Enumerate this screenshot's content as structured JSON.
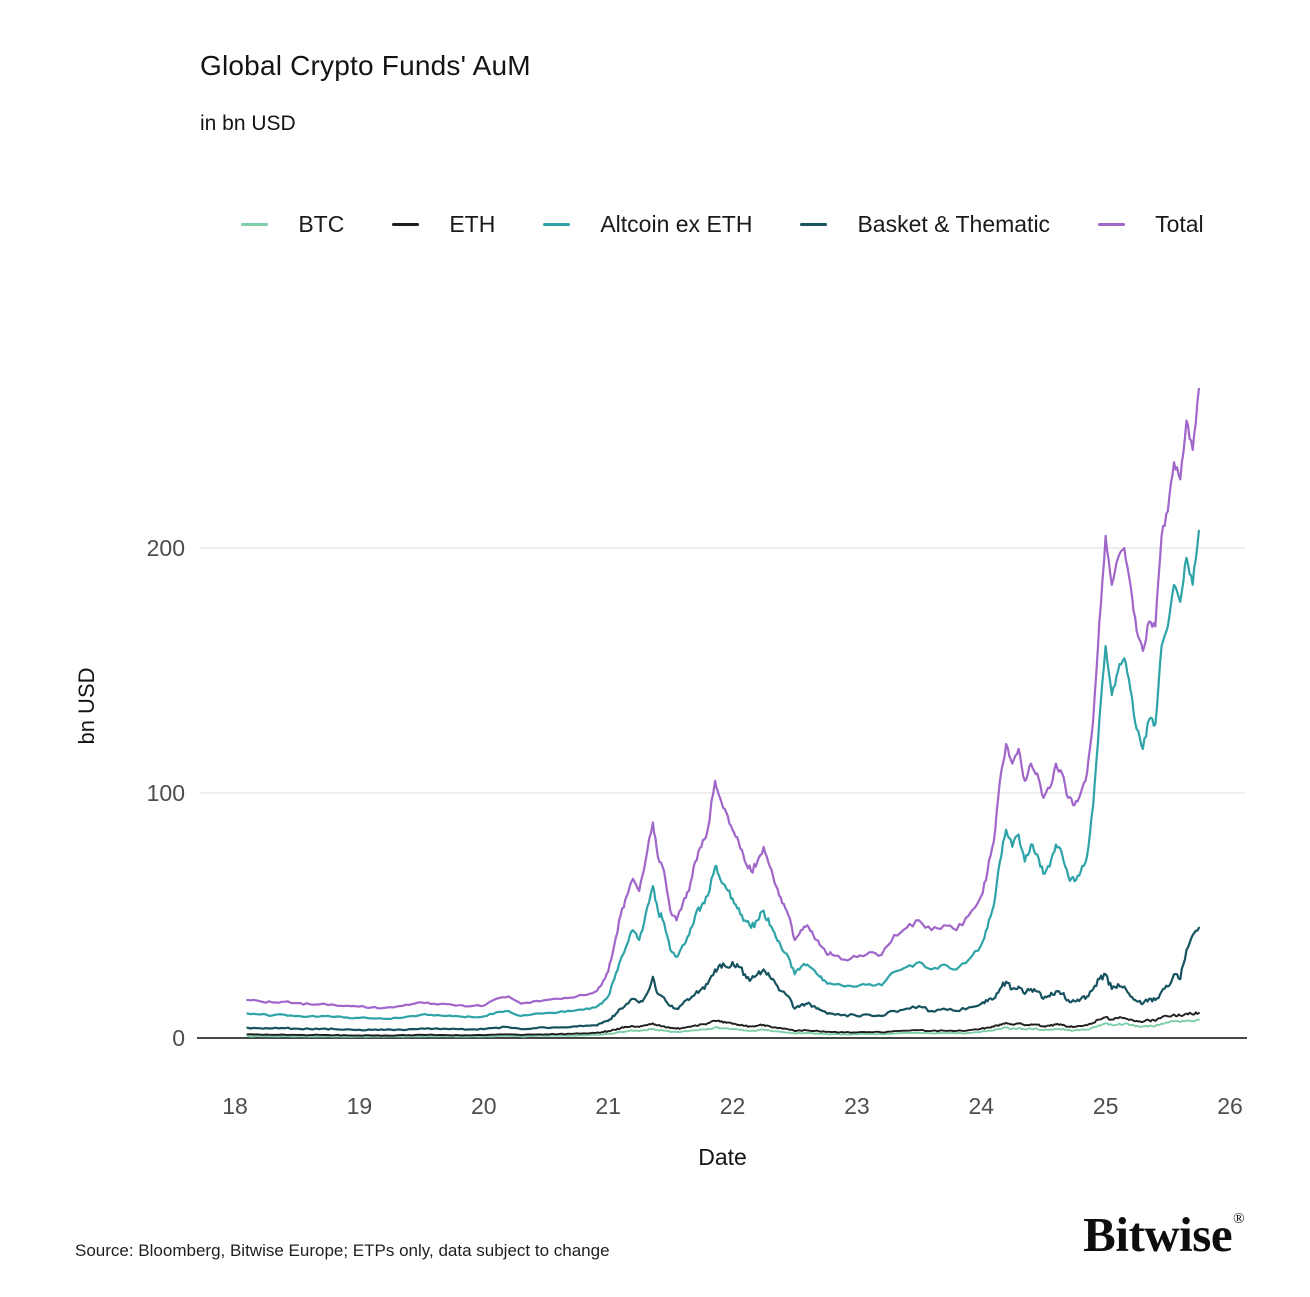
{
  "page": {
    "title": "Global Crypto Funds' AuM",
    "subtitle": "in bn USD",
    "footer_source": "Source: Bloomberg, Bitwise Europe; ETPs only, data subject to change",
    "brand": "Bitwise",
    "brand_mark": "®"
  },
  "chart_data": {
    "type": "line",
    "title": "Global Crypto Funds' AuM",
    "subtitle": "in bn USD",
    "xlabel": "Date",
    "ylabel": "bn USD",
    "xlim": [
      18,
      26
    ],
    "ylim": [
      0,
      280
    ],
    "x_ticks": [
      18,
      19,
      20,
      21,
      22,
      23,
      24,
      25,
      26
    ],
    "y_ticks": [
      0,
      100,
      200
    ],
    "grid": "horizontal gridlines at 100 and 200, dark axis line at 0",
    "legend_position": "top",
    "colors": {
      "grid": "#e4e4e4",
      "zero_axis": "#474747",
      "tick_text": "#4d4d4d"
    },
    "x": [
      18.1,
      18.2,
      18.3,
      18.4,
      18.5,
      18.6,
      18.7,
      18.8,
      18.9,
      19.0,
      19.1,
      19.2,
      19.3,
      19.4,
      19.5,
      19.6,
      19.7,
      19.8,
      19.9,
      20.0,
      20.1,
      20.2,
      20.3,
      20.4,
      20.5,
      20.6,
      20.7,
      20.8,
      20.9,
      20.95,
      21.0,
      21.05,
      21.1,
      21.15,
      21.2,
      21.25,
      21.3,
      21.36,
      21.4,
      21.45,
      21.5,
      21.55,
      21.6,
      21.65,
      21.7,
      21.75,
      21.8,
      21.86,
      21.9,
      21.95,
      22.0,
      22.05,
      22.1,
      22.15,
      22.2,
      22.25,
      22.3,
      22.35,
      22.4,
      22.45,
      22.5,
      22.55,
      22.6,
      22.65,
      22.7,
      22.75,
      22.8,
      22.9,
      23.0,
      23.1,
      23.2,
      23.3,
      23.4,
      23.5,
      23.6,
      23.7,
      23.8,
      23.9,
      24.0,
      24.05,
      24.1,
      24.15,
      24.2,
      24.25,
      24.3,
      24.35,
      24.4,
      24.45,
      24.5,
      24.55,
      24.6,
      24.65,
      24.7,
      24.75,
      24.8,
      24.85,
      24.9,
      24.95,
      25.0,
      25.05,
      25.1,
      25.15,
      25.2,
      25.25,
      25.3,
      25.35,
      25.4,
      25.45,
      25.5,
      25.55,
      25.6,
      25.65,
      25.7,
      25.75
    ],
    "series": [
      {
        "name": "BTC",
        "color": "#7ecfa9",
        "width": 1.9,
        "noise": 0.05,
        "values": [
          0.8,
          0.75,
          0.7,
          0.72,
          0.68,
          0.65,
          0.67,
          0.62,
          0.6,
          0.58,
          0.55,
          0.55,
          0.6,
          0.68,
          0.75,
          0.72,
          0.7,
          0.67,
          0.64,
          0.66,
          0.8,
          0.85,
          0.68,
          0.78,
          0.85,
          0.9,
          0.95,
          1.05,
          1.2,
          1.4,
          1.7,
          2.0,
          2.4,
          2.7,
          3.0,
          2.8,
          3.2,
          3.7,
          3.2,
          3.0,
          2.5,
          2.4,
          2.6,
          2.9,
          3.2,
          3.5,
          3.7,
          4.3,
          4.1,
          3.9,
          3.6,
          3.4,
          3.1,
          2.9,
          3.1,
          3.4,
          3.0,
          2.7,
          2.4,
          2.2,
          1.8,
          1.9,
          2.0,
          1.9,
          1.7,
          1.6,
          1.55,
          1.5,
          1.5,
          1.55,
          1.5,
          1.8,
          2.0,
          2.1,
          1.9,
          2.0,
          1.9,
          2.1,
          2.5,
          2.8,
          3.1,
          3.7,
          4.2,
          3.8,
          4.0,
          3.5,
          3.8,
          3.7,
          3.2,
          3.4,
          3.7,
          3.6,
          3.2,
          3.1,
          3.3,
          3.5,
          4.2,
          5.2,
          6.0,
          5.3,
          5.6,
          5.8,
          5.3,
          4.9,
          4.6,
          5.0,
          4.9,
          5.9,
          6.2,
          6.8,
          6.5,
          7.2,
          6.9,
          7.5
        ]
      },
      {
        "name": "ETH",
        "color": "#1f1f1f",
        "width": 1.9,
        "noise": 0.05,
        "values": [
          1.5,
          1.4,
          1.3,
          1.35,
          1.25,
          1.2,
          1.25,
          1.15,
          1.1,
          1.05,
          1.0,
          1.0,
          1.1,
          1.2,
          1.3,
          1.25,
          1.2,
          1.15,
          1.1,
          1.15,
          1.4,
          1.5,
          1.2,
          1.4,
          1.5,
          1.6,
          1.7,
          1.9,
          2.1,
          2.4,
          2.8,
          3.4,
          4.0,
          4.4,
          4.8,
          4.5,
          5.2,
          6.0,
          5.2,
          4.8,
          4.0,
          3.8,
          4.2,
          4.6,
          5.2,
          5.6,
          6.0,
          7.0,
          6.6,
          6.2,
          5.8,
          5.4,
          5.0,
          4.7,
          5.0,
          5.4,
          4.8,
          4.3,
          3.8,
          3.5,
          2.8,
          3.0,
          3.1,
          2.9,
          2.7,
          2.5,
          2.4,
          2.3,
          2.3,
          2.4,
          2.3,
          2.8,
          3.0,
          3.2,
          2.9,
          3.0,
          2.9,
          3.2,
          3.8,
          4.2,
          4.6,
          5.5,
          6.2,
          5.6,
          5.9,
          5.2,
          5.6,
          5.4,
          4.8,
          5.0,
          5.5,
          5.3,
          4.7,
          4.6,
          4.9,
          5.2,
          6.2,
          7.5,
          8.5,
          7.6,
          8.0,
          8.2,
          7.6,
          7.0,
          6.6,
          7.2,
          7.0,
          8.4,
          8.8,
          9.6,
          9.2,
          10.0,
          9.6,
          10.2
        ]
      },
      {
        "name": "Altcoin ex ETH",
        "color": "#2ea4a8",
        "width": 2.2,
        "noise": 0.028,
        "values": [
          10.0,
          9.6,
          9.2,
          9.5,
          9.0,
          8.8,
          9.0,
          8.6,
          8.4,
          8.2,
          8.0,
          7.8,
          8.2,
          8.8,
          9.5,
          9.2,
          9.0,
          8.8,
          8.6,
          8.8,
          10.5,
          11.0,
          9.0,
          9.8,
          10.2,
          10.5,
          11.0,
          11.5,
          12.5,
          14.0,
          17,
          24,
          32,
          38,
          44,
          40,
          50,
          62,
          52,
          47,
          36,
          33,
          38,
          42,
          50,
          54,
          58,
          70,
          65,
          61,
          57,
          53,
          48,
          45,
          48,
          52,
          46,
          41,
          36,
          33,
          26,
          29,
          30,
          28,
          25,
          23,
          22,
          21,
          21,
          22,
          21.5,
          27,
          29,
          31,
          28,
          30,
          28,
          32,
          38,
          45,
          54,
          72,
          85,
          78,
          83,
          72,
          79,
          75,
          67,
          70,
          79,
          75,
          66,
          64,
          68,
          74,
          95,
          130,
          160,
          140,
          150,
          155,
          142,
          126,
          118,
          130,
          128,
          160,
          168,
          185,
          178,
          196,
          185,
          207
        ]
      },
      {
        "name": "Basket & Thematic",
        "color": "#17535f",
        "width": 2.2,
        "noise": 0.05,
        "values": [
          4.2,
          4.0,
          3.9,
          4.0,
          3.8,
          3.7,
          3.8,
          3.6,
          3.5,
          3.4,
          3.3,
          3.3,
          3.4,
          3.6,
          3.9,
          3.8,
          3.7,
          3.6,
          3.5,
          3.6,
          4.2,
          4.4,
          3.6,
          4.0,
          4.2,
          4.3,
          4.5,
          4.8,
          5.2,
          6.0,
          7,
          9,
          12,
          14,
          16,
          14.5,
          17,
          25,
          18,
          16.5,
          13,
          12,
          14,
          15.5,
          18,
          20,
          22,
          28,
          30,
          29,
          31,
          29,
          26,
          24,
          26,
          28,
          25,
          22,
          19,
          17,
          12,
          13.5,
          14,
          13,
          11.5,
          10.5,
          10,
          9.5,
          9,
          9.5,
          9,
          11,
          12,
          13,
          11,
          12,
          11,
          12.5,
          14,
          15,
          16,
          20,
          23,
          20,
          21,
          18,
          20,
          19,
          16,
          17,
          19,
          18,
          15.5,
          15,
          16,
          17,
          20,
          24,
          26,
          20,
          22,
          21,
          17,
          15,
          14,
          16,
          15.5,
          19,
          21,
          26,
          24,
          36,
          42,
          45
        ]
      },
      {
        "name": "Total",
        "color": "#a066c9",
        "width": 2.2,
        "noise": 0.022,
        "values": [
          15.5,
          15.0,
          14.5,
          14.8,
          14.2,
          13.8,
          14.0,
          13.5,
          13.2,
          12.8,
          12.5,
          12.3,
          12.8,
          13.5,
          14.5,
          14.0,
          13.8,
          13.4,
          13.0,
          13.2,
          16.0,
          17.0,
          14.0,
          15.0,
          15.5,
          16.0,
          16.5,
          17.5,
          19.0,
          22.0,
          27,
          38,
          50,
          58,
          65,
          60,
          72,
          88,
          74,
          68,
          52,
          48,
          55,
          60,
          72,
          78,
          85,
          105,
          98,
          92,
          85,
          80,
          72,
          68,
          72,
          78,
          70,
          62,
          55,
          50,
          40,
          44,
          46,
          42,
          38,
          35,
          34,
          32,
          33,
          35,
          34,
          42,
          45,
          48,
          44,
          46,
          44,
          50,
          58,
          68,
          80,
          105,
          120,
          112,
          118,
          105,
          112,
          108,
          98,
          102,
          112,
          108,
          98,
          95,
          100,
          108,
          130,
          170,
          205,
          185,
          196,
          200,
          185,
          166,
          158,
          170,
          168,
          205,
          215,
          235,
          228,
          252,
          240,
          265
        ]
      }
    ]
  }
}
